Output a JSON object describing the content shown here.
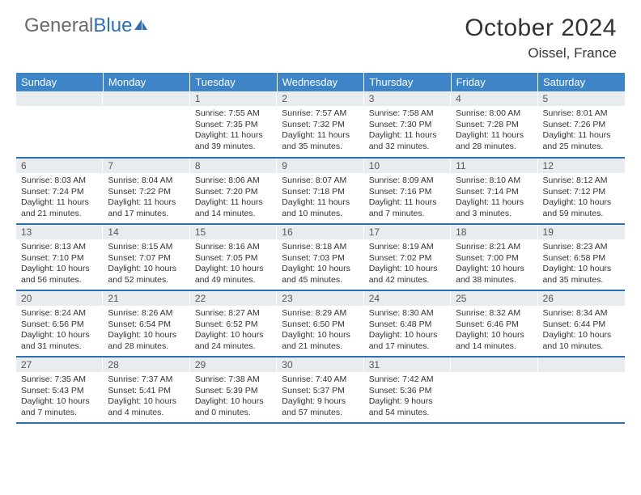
{
  "logo": {
    "text1": "General",
    "text2": "Blue"
  },
  "title": "October 2024",
  "location": "Oissel, France",
  "colors": {
    "header_bg": "#3d85c6",
    "header_text": "#ffffff",
    "daynum_bg": "#e8ecef",
    "border": "#2d6fb5",
    "logo_gray": "#6a6a6a",
    "logo_blue": "#2d6fb5",
    "text": "#333333"
  },
  "table": {
    "columns": [
      "Sunday",
      "Monday",
      "Tuesday",
      "Wednesday",
      "Thursday",
      "Friday",
      "Saturday"
    ],
    "weeks": [
      [
        null,
        null,
        {
          "n": "1",
          "sr": "7:55 AM",
          "ss": "7:35 PM",
          "dl": "11 hours and 39 minutes."
        },
        {
          "n": "2",
          "sr": "7:57 AM",
          "ss": "7:32 PM",
          "dl": "11 hours and 35 minutes."
        },
        {
          "n": "3",
          "sr": "7:58 AM",
          "ss": "7:30 PM",
          "dl": "11 hours and 32 minutes."
        },
        {
          "n": "4",
          "sr": "8:00 AM",
          "ss": "7:28 PM",
          "dl": "11 hours and 28 minutes."
        },
        {
          "n": "5",
          "sr": "8:01 AM",
          "ss": "7:26 PM",
          "dl": "11 hours and 25 minutes."
        }
      ],
      [
        {
          "n": "6",
          "sr": "8:03 AM",
          "ss": "7:24 PM",
          "dl": "11 hours and 21 minutes."
        },
        {
          "n": "7",
          "sr": "8:04 AM",
          "ss": "7:22 PM",
          "dl": "11 hours and 17 minutes."
        },
        {
          "n": "8",
          "sr": "8:06 AM",
          "ss": "7:20 PM",
          "dl": "11 hours and 14 minutes."
        },
        {
          "n": "9",
          "sr": "8:07 AM",
          "ss": "7:18 PM",
          "dl": "11 hours and 10 minutes."
        },
        {
          "n": "10",
          "sr": "8:09 AM",
          "ss": "7:16 PM",
          "dl": "11 hours and 7 minutes."
        },
        {
          "n": "11",
          "sr": "8:10 AM",
          "ss": "7:14 PM",
          "dl": "11 hours and 3 minutes."
        },
        {
          "n": "12",
          "sr": "8:12 AM",
          "ss": "7:12 PM",
          "dl": "10 hours and 59 minutes."
        }
      ],
      [
        {
          "n": "13",
          "sr": "8:13 AM",
          "ss": "7:10 PM",
          "dl": "10 hours and 56 minutes."
        },
        {
          "n": "14",
          "sr": "8:15 AM",
          "ss": "7:07 PM",
          "dl": "10 hours and 52 minutes."
        },
        {
          "n": "15",
          "sr": "8:16 AM",
          "ss": "7:05 PM",
          "dl": "10 hours and 49 minutes."
        },
        {
          "n": "16",
          "sr": "8:18 AM",
          "ss": "7:03 PM",
          "dl": "10 hours and 45 minutes."
        },
        {
          "n": "17",
          "sr": "8:19 AM",
          "ss": "7:02 PM",
          "dl": "10 hours and 42 minutes."
        },
        {
          "n": "18",
          "sr": "8:21 AM",
          "ss": "7:00 PM",
          "dl": "10 hours and 38 minutes."
        },
        {
          "n": "19",
          "sr": "8:23 AM",
          "ss": "6:58 PM",
          "dl": "10 hours and 35 minutes."
        }
      ],
      [
        {
          "n": "20",
          "sr": "8:24 AM",
          "ss": "6:56 PM",
          "dl": "10 hours and 31 minutes."
        },
        {
          "n": "21",
          "sr": "8:26 AM",
          "ss": "6:54 PM",
          "dl": "10 hours and 28 minutes."
        },
        {
          "n": "22",
          "sr": "8:27 AM",
          "ss": "6:52 PM",
          "dl": "10 hours and 24 minutes."
        },
        {
          "n": "23",
          "sr": "8:29 AM",
          "ss": "6:50 PM",
          "dl": "10 hours and 21 minutes."
        },
        {
          "n": "24",
          "sr": "8:30 AM",
          "ss": "6:48 PM",
          "dl": "10 hours and 17 minutes."
        },
        {
          "n": "25",
          "sr": "8:32 AM",
          "ss": "6:46 PM",
          "dl": "10 hours and 14 minutes."
        },
        {
          "n": "26",
          "sr": "8:34 AM",
          "ss": "6:44 PM",
          "dl": "10 hours and 10 minutes."
        }
      ],
      [
        {
          "n": "27",
          "sr": "7:35 AM",
          "ss": "5:43 PM",
          "dl": "10 hours and 7 minutes."
        },
        {
          "n": "28",
          "sr": "7:37 AM",
          "ss": "5:41 PM",
          "dl": "10 hours and 4 minutes."
        },
        {
          "n": "29",
          "sr": "7:38 AM",
          "ss": "5:39 PM",
          "dl": "10 hours and 0 minutes."
        },
        {
          "n": "30",
          "sr": "7:40 AM",
          "ss": "5:37 PM",
          "dl": "9 hours and 57 minutes."
        },
        {
          "n": "31",
          "sr": "7:42 AM",
          "ss": "5:36 PM",
          "dl": "9 hours and 54 minutes."
        },
        null,
        null
      ]
    ],
    "labels": {
      "sunrise": "Sunrise: ",
      "sunset": "Sunset: ",
      "daylight": "Daylight: "
    }
  }
}
